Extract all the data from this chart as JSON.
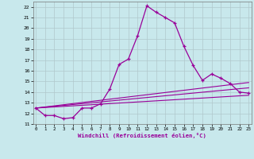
{
  "xlabel": "Windchill (Refroidissement éolien,°C)",
  "bg_color": "#c8e8ec",
  "grid_color": "#b0c8cc",
  "line_color": "#990099",
  "x_ticks": [
    0,
    1,
    2,
    3,
    4,
    5,
    6,
    7,
    8,
    9,
    10,
    11,
    12,
    13,
    14,
    15,
    16,
    17,
    18,
    19,
    20,
    21,
    22,
    23
  ],
  "y_ticks": [
    11,
    12,
    13,
    14,
    15,
    16,
    17,
    18,
    19,
    20,
    21,
    22
  ],
  "xlim": [
    -0.3,
    23.3
  ],
  "ylim": [
    11.0,
    22.5
  ],
  "line1_x": [
    0,
    1,
    2,
    3,
    4,
    5,
    6,
    7,
    8,
    9,
    10,
    11,
    12,
    13,
    14,
    15,
    16,
    17,
    18,
    19,
    20,
    21,
    22,
    23
  ],
  "line1_y": [
    12.5,
    11.8,
    11.8,
    11.5,
    11.6,
    12.5,
    12.5,
    12.9,
    14.3,
    16.6,
    17.1,
    19.3,
    22.1,
    21.5,
    21.0,
    20.5,
    18.3,
    16.5,
    15.1,
    15.7,
    15.3,
    14.8,
    14.0,
    13.9
  ],
  "line2_x": [
    0,
    23
  ],
  "line2_y": [
    12.5,
    14.9
  ],
  "line3_x": [
    0,
    23
  ],
  "line3_y": [
    12.5,
    14.4
  ],
  "line4_x": [
    0,
    23
  ],
  "line4_y": [
    12.5,
    13.7
  ]
}
